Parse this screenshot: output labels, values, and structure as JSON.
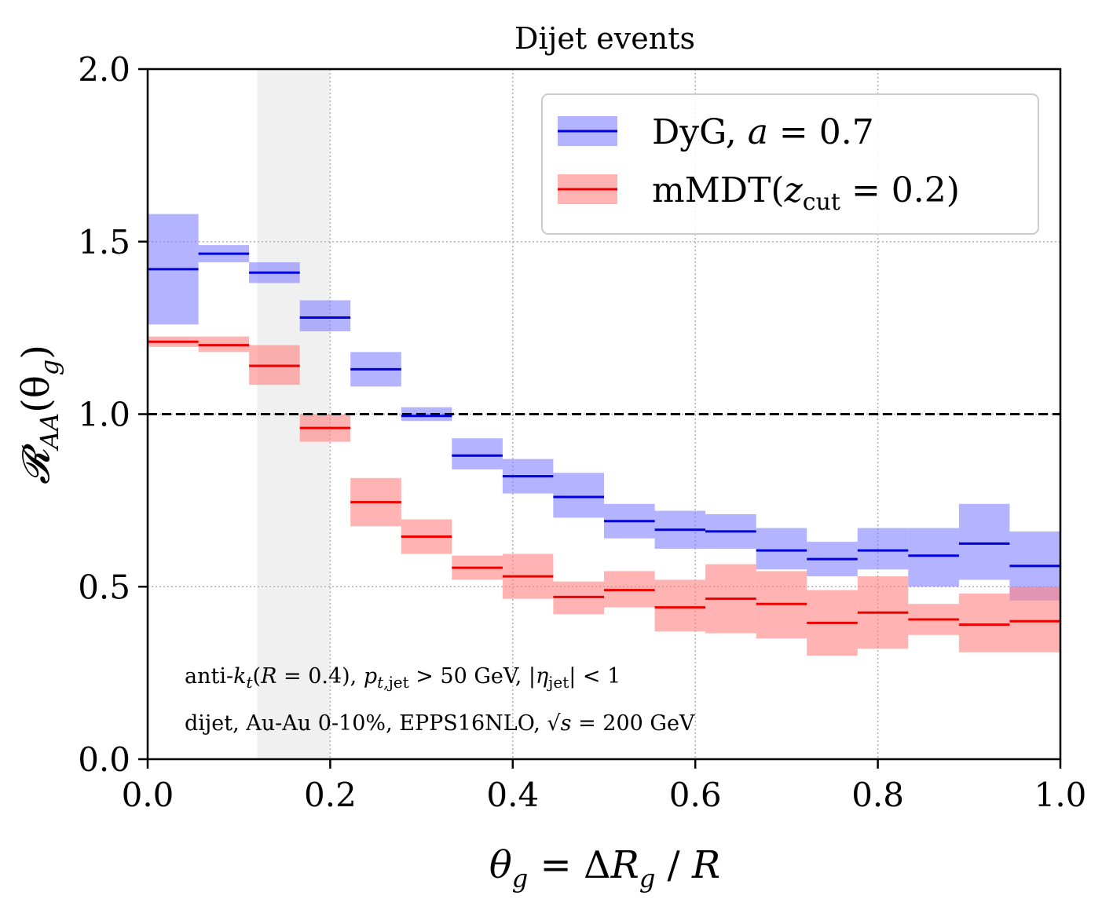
{
  "chart_data": {
    "type": "step-band",
    "title": "Dijet events",
    "xlabel": "θg = ΔRg / R",
    "ylabel": "𝓡AA(θg)",
    "xlim": [
      0.0,
      1.0
    ],
    "ylim": [
      0.0,
      2.0
    ],
    "xticks": [
      "0.0",
      "0.2",
      "0.4",
      "0.6",
      "0.8",
      "1.0"
    ],
    "yticks": [
      "0.0",
      "0.5",
      "1.0",
      "1.5",
      "2.0"
    ],
    "grid": true,
    "reference_line": 1.0,
    "shaded_region": [
      0.12,
      0.2
    ],
    "bin_edges": [
      0.0,
      0.0556,
      0.1111,
      0.1667,
      0.2222,
      0.2778,
      0.3333,
      0.3889,
      0.4444,
      0.5,
      0.5556,
      0.6111,
      0.6667,
      0.7222,
      0.7778,
      0.8333,
      0.8889,
      0.9444,
      1.0
    ],
    "series": [
      {
        "name": "DyG, a = 0.7",
        "color": "#0000dd",
        "band_color": "#8080ff",
        "central": [
          1.42,
          1.465,
          1.41,
          1.28,
          1.13,
          0.995,
          0.88,
          0.82,
          0.76,
          0.69,
          0.665,
          0.66,
          0.605,
          0.58,
          0.605,
          0.59,
          0.625,
          0.56
        ],
        "low": [
          1.26,
          1.44,
          1.38,
          1.24,
          1.08,
          0.98,
          0.84,
          0.77,
          0.7,
          0.64,
          0.61,
          0.61,
          0.55,
          0.53,
          0.55,
          0.5,
          0.52,
          0.46
        ],
        "high": [
          1.58,
          1.49,
          1.44,
          1.33,
          1.18,
          1.02,
          0.93,
          0.87,
          0.83,
          0.74,
          0.72,
          0.71,
          0.67,
          0.63,
          0.67,
          0.67,
          0.74,
          0.66
        ]
      },
      {
        "name": "mMDT(zcut = 0.2)",
        "color": "#ee0000",
        "band_color": "#ff8080",
        "central": [
          1.21,
          1.2,
          1.14,
          0.96,
          0.745,
          0.645,
          0.555,
          0.53,
          0.47,
          0.49,
          0.44,
          0.465,
          0.45,
          0.395,
          0.425,
          0.405,
          0.39,
          0.4
        ],
        "low": [
          1.195,
          1.18,
          1.085,
          0.92,
          0.675,
          0.595,
          0.52,
          0.465,
          0.42,
          0.44,
          0.37,
          0.365,
          0.35,
          0.3,
          0.32,
          0.36,
          0.31,
          0.31
        ],
        "high": [
          1.225,
          1.225,
          1.2,
          1.0,
          0.815,
          0.695,
          0.59,
          0.595,
          0.515,
          0.545,
          0.52,
          0.565,
          0.545,
          0.49,
          0.53,
          0.45,
          0.48,
          0.5
        ]
      }
    ],
    "legend": {
      "position": "top-right",
      "entries": [
        "DyG, a = 0.7",
        "mMDT(zcut = 0.2)"
      ]
    },
    "annotations": [
      "anti-kt(R = 0.4), pt,jet > 50 GeV, |ηjet| < 1",
      "dijet, Au-Au 0-10%, EPPS16NLO, √s = 200 GeV"
    ]
  }
}
